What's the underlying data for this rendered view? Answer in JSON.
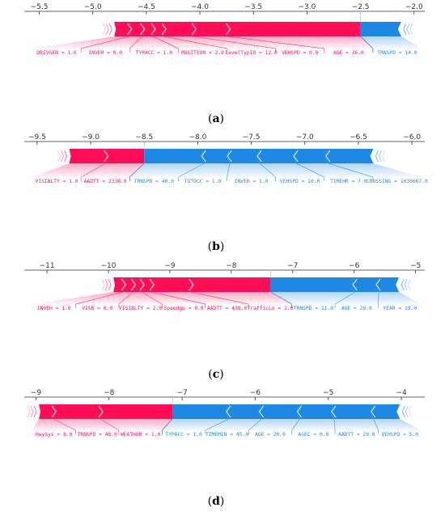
{
  "colors": {
    "push_up": "#ff0d57",
    "push_down": "#1e88e5",
    "axis": "#333333"
  },
  "chart_data": [
    {
      "type": "force",
      "caption_open": "(",
      "caption": "a",
      "caption_close": ")",
      "ticks": [
        -5.5,
        -5.0,
        -4.5,
        -4.0,
        -3.5,
        -3.0,
        -2.5,
        -2.0
      ],
      "tick_labels": [
        "−5.5",
        "−5.0",
        "−4.5",
        "−4.0",
        "−3.5",
        "−3.0",
        "−2.5",
        "−2.0"
      ],
      "xlim": [
        -5.64,
        -1.9
      ],
      "prediction": -2.5,
      "positive": [
        {
          "label": "DRIVGEN = 1.0",
          "start": -4.8,
          "end": -4.66
        },
        {
          "label": "INVEH = 0.0",
          "start": -4.66,
          "end": -4.54
        },
        {
          "label": "TYPACC = 1.0",
          "start": -4.54,
          "end": -4.44
        },
        {
          "label": "POSITION = 2.0",
          "start": -4.44,
          "end": -4.34
        },
        {
          "label": "LevelTypID = 12.0",
          "start": -4.34,
          "end": -4.06
        },
        {
          "label": "VEHSPD = 0.0",
          "start": -4.06,
          "end": -3.74
        },
        {
          "label": "AGE = 36.0",
          "start": -3.74,
          "end": -2.5
        }
      ],
      "negative": [
        {
          "label": "TRNSPD = 14.0",
          "start": -2.5,
          "end": -2.12
        }
      ]
    },
    {
      "type": "force",
      "caption_open": "(",
      "caption": "b",
      "caption_close": ")",
      "ticks": [
        -9.5,
        -9.0,
        -8.5,
        -8.0,
        -7.5,
        -7.0,
        -6.5,
        -6.0
      ],
      "tick_labels": [
        "−9.5",
        "−9.0",
        "−8.5",
        "−8.0",
        "−7.5",
        "−7.0",
        "−6.5",
        "−6.0"
      ],
      "xlim": [
        -9.62,
        -5.88
      ],
      "prediction": -8.5,
      "positive": [
        {
          "label": "VISIBLTY = 1.0",
          "start": -9.2,
          "end": -8.86
        },
        {
          "label": "AADTT = 2338.0",
          "start": -8.86,
          "end": -8.5
        }
      ],
      "negative": [
        {
          "label": "TRNSPD = 40.0",
          "start": -8.5,
          "end": -7.94
        },
        {
          "label": "TOTOCC = 1.0",
          "start": -7.94,
          "end": -7.7
        },
        {
          "label": "INVEH = 1.0",
          "start": -7.7,
          "end": -7.42
        },
        {
          "label": "VEHSPD = 10.0",
          "start": -7.42,
          "end": -7.08
        },
        {
          "label": "TIMEHR = 7.0",
          "start": -7.08,
          "end": -6.78
        },
        {
          "label": "CROSSING = 1030667.0",
          "start": -6.78,
          "end": -6.36
        }
      ]
    },
    {
      "type": "force",
      "caption_open": "(",
      "caption": "c",
      "caption_close": ")",
      "ticks": [
        -11,
        -10,
        -9,
        -8,
        -7,
        -6,
        -5
      ],
      "tick_labels": [
        "−11",
        "−10",
        "−9",
        "−8",
        "−7",
        "−6",
        "−5"
      ],
      "xlim": [
        -11.37,
        -4.85
      ],
      "prediction": -7.36,
      "positive": [
        {
          "label": "INVEH = 1.0",
          "start": -9.92,
          "end": -9.76
        },
        {
          "label": "VISB = 0.0",
          "start": -9.76,
          "end": -9.6
        },
        {
          "label": "VISIBLTY = 2.0",
          "start": -9.6,
          "end": -9.46
        },
        {
          "label": "Speedgp = 0.0",
          "start": -9.46,
          "end": -9.3
        },
        {
          "label": "AADTT = 438.0",
          "start": -9.3,
          "end": -8.66
        },
        {
          "label": "TrafficLn = 2.0",
          "start": -8.66,
          "end": -7.36
        }
      ],
      "negative": [
        {
          "label": "TRNSPD = 11.0",
          "start": -7.36,
          "end": -5.98
        },
        {
          "label": "AGE = 28.0",
          "start": -5.98,
          "end": -5.6
        },
        {
          "label": "YEAR = 19.0",
          "start": -5.6,
          "end": -5.27
        }
      ]
    },
    {
      "type": "force",
      "caption_open": "(",
      "caption": "d",
      "caption_close": ")",
      "ticks": [
        -9,
        -8,
        -7,
        -6,
        -5,
        -4
      ],
      "tick_labels": [
        "−9",
        "−8",
        "−7",
        "−6",
        "−5",
        "−4"
      ],
      "xlim": [
        -9.16,
        -3.68
      ],
      "prediction": -7.13,
      "positive": [
        {
          "label": "HwySys = 8.0",
          "start": -8.96,
          "end": -8.76
        },
        {
          "label": "TRNSPD = 48.0",
          "start": -8.76,
          "end": -8.12
        },
        {
          "label": "WEATHER = 1.0",
          "start": -8.12,
          "end": -7.13
        }
      ],
      "negative": [
        {
          "label": "TYPACC = 1.0",
          "start": -7.13,
          "end": -6.36
        },
        {
          "label": "TIMEMIN = 45.0",
          "start": -6.36,
          "end": -5.91
        },
        {
          "label": "AGE = 20.0",
          "start": -5.91,
          "end": -5.39
        },
        {
          "label": "AGEC = 0.0",
          "start": -5.39,
          "end": -4.92
        },
        {
          "label": "AADTT = 20.0",
          "start": -4.92,
          "end": -4.38
        },
        {
          "label": "VEHSPD = 5.0",
          "start": -4.38,
          "end": -4.02
        }
      ]
    }
  ]
}
